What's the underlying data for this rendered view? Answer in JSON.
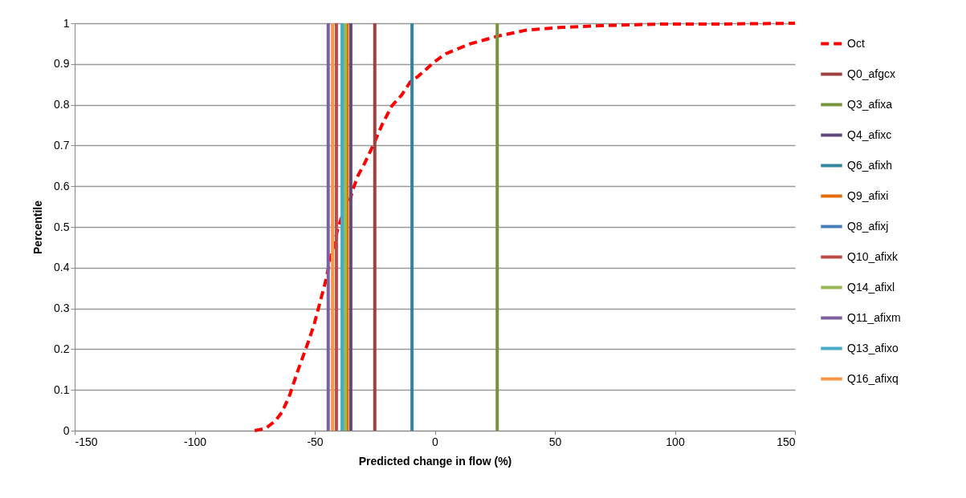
{
  "chart_data": {
    "type": "line",
    "xlabel": "Predicted  change  in flow (%)",
    "ylabel": "Percentile",
    "xlim": [
      -150,
      150
    ],
    "xticks": [
      -150,
      -100,
      -50,
      0,
      50,
      100,
      150
    ],
    "ylim": [
      0,
      1
    ],
    "yticks": [
      0,
      0.1,
      0.2,
      0.3,
      0.4,
      0.5,
      0.6,
      0.7,
      0.8,
      0.9,
      1
    ],
    "grid": "y",
    "legend": "right",
    "marker": "none",
    "series": [
      {
        "name": "Oct",
        "color": "#ff0000",
        "line_style": "dashed",
        "x": [
          -75,
          -70.4,
          -66.4,
          -63.7,
          -60.7,
          -57,
          -53,
          -50.3,
          -48,
          -45.6,
          -44,
          -42,
          -40.3,
          -38,
          -35.6,
          -34,
          -32,
          -29,
          -25.3,
          -21.9,
          -17.9,
          -13.9,
          -10.2,
          -6.9,
          0,
          4.5,
          14.5,
          26.6,
          38,
          53.3,
          69,
          93.5,
          116,
          150
        ],
        "values": [
          0,
          0.006,
          0.024,
          0.045,
          0.083,
          0.148,
          0.213,
          0.26,
          0.311,
          0.364,
          0.409,
          0.457,
          0.498,
          0.537,
          0.561,
          0.594,
          0.626,
          0.659,
          0.705,
          0.752,
          0.797,
          0.823,
          0.856,
          0.87,
          0.906,
          0.925,
          0.949,
          0.969,
          0.983,
          0.99,
          0.994,
          0.998,
          0.998,
          1
        ]
      },
      {
        "name": "Q0_afgcx",
        "color": "#a0413f",
        "line_style": "solid",
        "x": [
          -25,
          -25
        ],
        "values": [
          0,
          1
        ]
      },
      {
        "name": "Q3_afixa",
        "color": "#77933c",
        "line_style": "solid",
        "x": [
          26,
          26
        ],
        "values": [
          0,
          1
        ]
      },
      {
        "name": "Q4_afixc",
        "color": "#604a7b",
        "line_style": "solid",
        "x": [
          -35,
          -35
        ],
        "values": [
          0,
          1
        ]
      },
      {
        "name": "Q6_afixh",
        "color": "#31859c",
        "line_style": "solid",
        "x": [
          -9.5,
          -9.5
        ],
        "values": [
          0,
          1
        ]
      },
      {
        "name": "Q9_afixi",
        "color": "#e46c0a",
        "line_style": "solid",
        "x": [
          -36.5,
          -36.5
        ],
        "values": [
          0,
          1
        ]
      },
      {
        "name": "Q8_afixj",
        "color": "#4a7ebb",
        "line_style": "solid",
        "x": [
          null,
          null
        ],
        "values": [
          null,
          null
        ]
      },
      {
        "name": "Q10_afixk",
        "color": "#be4b48",
        "line_style": "solid",
        "x": [
          -41,
          -41
        ],
        "values": [
          0,
          1
        ]
      },
      {
        "name": "Q14_afixl",
        "color": "#98b954",
        "line_style": "solid",
        "x": [
          -37.3,
          -37.3
        ],
        "values": [
          0,
          1
        ]
      },
      {
        "name": "Q11_afixm",
        "color": "#7d60a0",
        "line_style": "solid",
        "x": [
          -44.4,
          -44.4
        ],
        "values": [
          0,
          1
        ]
      },
      {
        "name": "Q13_afixo",
        "color": "#46aac5",
        "line_style": "solid",
        "x": [
          -38.6,
          -38.6
        ],
        "values": [
          0,
          1
        ]
      },
      {
        "name": "Q16_afixq",
        "color": "#f79646",
        "line_style": "solid",
        "x": [
          -42.6,
          -42.6
        ],
        "values": [
          0,
          1
        ]
      }
    ]
  }
}
